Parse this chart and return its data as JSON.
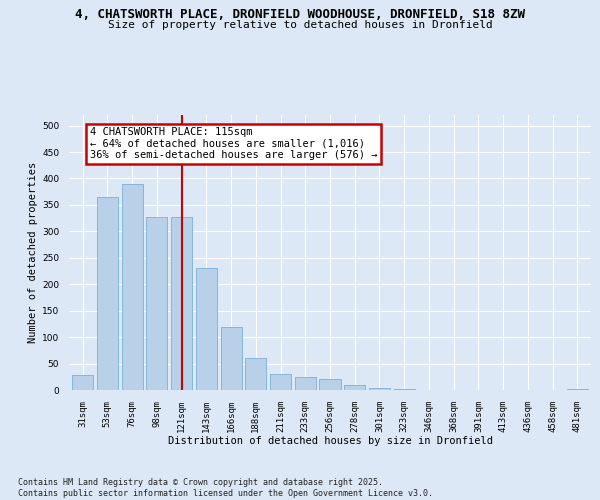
{
  "title_line1": "4, CHATSWORTH PLACE, DRONFIELD WOODHOUSE, DRONFIELD, S18 8ZW",
  "title_line2": "Size of property relative to detached houses in Dronfield",
  "xlabel": "Distribution of detached houses by size in Dronfield",
  "ylabel": "Number of detached properties",
  "categories": [
    "31sqm",
    "53sqm",
    "76sqm",
    "98sqm",
    "121sqm",
    "143sqm",
    "166sqm",
    "188sqm",
    "211sqm",
    "233sqm",
    "256sqm",
    "278sqm",
    "301sqm",
    "323sqm",
    "346sqm",
    "368sqm",
    "391sqm",
    "413sqm",
    "436sqm",
    "458sqm",
    "481sqm"
  ],
  "values": [
    28,
    365,
    390,
    328,
    328,
    230,
    120,
    60,
    30,
    25,
    20,
    10,
    3,
    1,
    0,
    0,
    0,
    0,
    0,
    0,
    1
  ],
  "bar_color": "#b8d0e8",
  "bar_edge_color": "#7aafd4",
  "vline_x_index": 4,
  "vline_color": "#cc0000",
  "annotation_text": "4 CHATSWORTH PLACE: 115sqm\n← 64% of detached houses are smaller (1,016)\n36% of semi-detached houses are larger (576) →",
  "annotation_box_facecolor": "white",
  "annotation_box_edgecolor": "#cc0000",
  "ylim": [
    0,
    520
  ],
  "yticks": [
    0,
    50,
    100,
    150,
    200,
    250,
    300,
    350,
    400,
    450,
    500
  ],
  "footnote": "Contains HM Land Registry data © Crown copyright and database right 2025.\nContains public sector information licensed under the Open Government Licence v3.0.",
  "bg_color": "#dce8f5",
  "grid_color": "#ffffff",
  "title_fontsize": 9,
  "subtitle_fontsize": 8,
  "axis_label_fontsize": 7.5,
  "tick_fontsize": 6.5,
  "annotation_fontsize": 7.5,
  "footnote_fontsize": 6
}
